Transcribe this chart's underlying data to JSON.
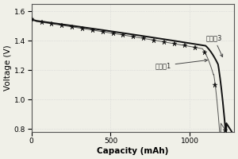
{
  "title": "",
  "xlabel": "Capacity (mAh)",
  "ylabel": "Voltage (V)",
  "xlim": [
    0,
    1280
  ],
  "ylim": [
    0.78,
    1.65
  ],
  "yticks": [
    0.8,
    1.0,
    1.2,
    1.4,
    1.6
  ],
  "xticks": [
    0,
    500,
    1000
  ],
  "grid_color": "#d0d0d0",
  "line_color": "#111111",
  "marker_color": "#111111",
  "annotation_shili": "实施兡3",
  "annotation_duibi": "对比兡1",
  "bg_color": "#f0f0e8"
}
